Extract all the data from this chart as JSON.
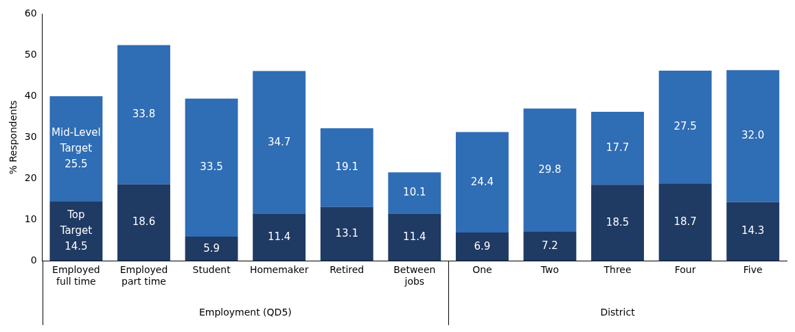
{
  "chart_data": {
    "type": "bar",
    "stacked": true,
    "ylabel": "% Respondents",
    "categories": [
      "Employed full time",
      "Employed part time",
      "Student",
      "Homemaker",
      "Retired",
      "Between jobs",
      "One",
      "Two",
      "Three",
      "Four",
      "Five"
    ],
    "series": [
      {
        "name": "Top Target",
        "color": "#1f3a63",
        "values": [
          14.5,
          18.6,
          5.9,
          11.4,
          13.1,
          11.4,
          6.9,
          7.2,
          18.5,
          18.7,
          14.3
        ]
      },
      {
        "name": "Mid-Level Target",
        "color": "#2f6db5",
        "values": [
          25.5,
          33.8,
          33.5,
          34.7,
          19.1,
          10.1,
          24.4,
          29.8,
          17.7,
          27.5,
          32.0
        ],
        "value_labels": [
          "25.5",
          "33.8",
          "33.5",
          "34.7",
          "19.1",
          "10.1",
          "24.4",
          "29.8",
          "17.7",
          "27.5",
          "32.0"
        ]
      }
    ],
    "ylim": [
      0,
      60
    ],
    "yticks": [
      0,
      10,
      20,
      30,
      40,
      50,
      60
    ],
    "data_labels": true,
    "grid": false,
    "legend": false,
    "annotations": [
      "Employment (QD5)",
      "District"
    ]
  }
}
